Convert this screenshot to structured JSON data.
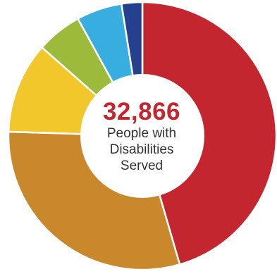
{
  "chart_data": {
    "type": "pie",
    "title": "",
    "center_value": "32,866",
    "center_caption": "People with Disabilities Served",
    "slices": [
      {
        "value": 45.5,
        "color": "#c4262f"
      },
      {
        "value": 30.0,
        "color": "#c9882c"
      },
      {
        "value": 11.0,
        "color": "#f2c72b"
      },
      {
        "value": 5.5,
        "color": "#9dbb3b"
      },
      {
        "value": 5.5,
        "color": "#38ade0"
      },
      {
        "value": 2.5,
        "color": "#24408e"
      }
    ]
  }
}
